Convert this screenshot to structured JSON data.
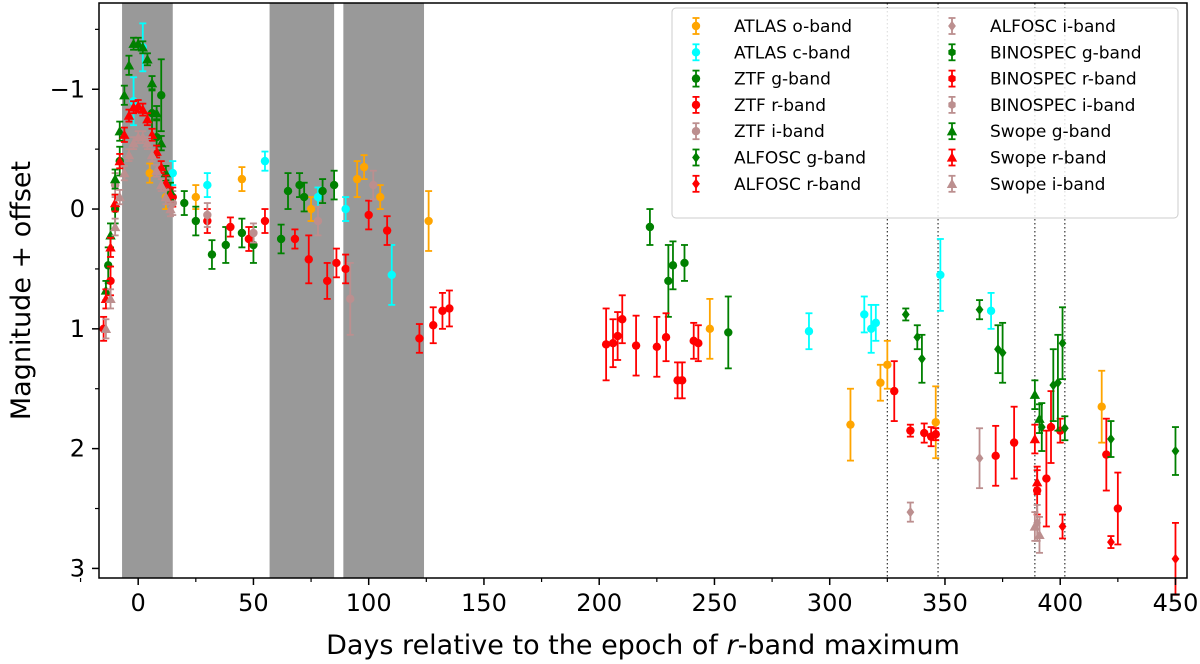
{
  "chart_data": {
    "type": "scatter",
    "xlabel_prefix": "Days relative to the epoch of ",
    "xlabel_italic": "r",
    "xlabel_suffix": "-band maximum",
    "ylabel": "Magnitude + offset",
    "xlim": [
      -17,
      455
    ],
    "ylim": [
      3.08,
      -1.72
    ],
    "y_inverted": true,
    "xticks": [
      0,
      50,
      100,
      150,
      200,
      250,
      300,
      350,
      400,
      450
    ],
    "xtick_labels": [
      "0",
      "50",
      "100",
      "150",
      "200",
      "250",
      "300",
      "350",
      "400",
      "450"
    ],
    "yticks": [
      -1,
      0,
      1,
      2,
      3
    ],
    "ytick_labels": [
      "−1",
      "0",
      "1",
      "2",
      "3"
    ],
    "shaded_regions": [
      [
        -7,
        15
      ],
      [
        57,
        85
      ],
      [
        89,
        124
      ]
    ],
    "vlines": [
      325,
      347,
      389,
      402
    ],
    "legend_position": "top-right",
    "series": [
      {
        "name": "ATLAS o-band",
        "color": "#ffa500",
        "marker": "circle",
        "points": [
          [
            5,
            -0.3,
            0.08
          ],
          [
            12,
            -0.1,
            0.1
          ],
          [
            25,
            -0.1,
            0.1
          ],
          [
            45,
            -0.25,
            0.1
          ],
          [
            75,
            0,
            0.1
          ],
          [
            95,
            -0.25,
            0.15
          ],
          [
            98,
            -0.35,
            0.1
          ],
          [
            105,
            -0.1,
            0.1
          ],
          [
            126,
            0.1,
            0.25
          ],
          [
            248,
            1,
            0.25
          ],
          [
            309,
            1.8,
            0.3
          ],
          [
            322,
            1.45,
            0.15
          ],
          [
            325,
            1.3,
            0.2
          ],
          [
            346,
            1.78,
            0.3
          ],
          [
            418,
            1.65,
            0.3
          ]
        ]
      },
      {
        "name": "ATLAS c-band",
        "color": "#00ffff",
        "marker": "circle",
        "points": [
          [
            -2,
            -0.9,
            0.2
          ],
          [
            2,
            -1.35,
            0.2
          ],
          [
            15,
            -0.3,
            0.1
          ],
          [
            30,
            -0.2,
            0.1
          ],
          [
            55,
            -0.4,
            0.08
          ],
          [
            78,
            -0.1,
            0.08
          ],
          [
            90,
            0,
            0.1
          ],
          [
            110,
            0.55,
            0.25
          ],
          [
            291,
            1.02,
            0.15
          ],
          [
            315,
            0.88,
            0.15
          ],
          [
            318,
            1,
            0.2
          ],
          [
            320,
            0.95,
            0.15
          ],
          [
            348,
            0.55,
            0.3
          ],
          [
            370,
            0.85,
            0.15
          ]
        ]
      },
      {
        "name": "ZTF g-band",
        "color": "#008000",
        "marker": "circle",
        "points": [
          [
            -13,
            0.47,
            0.15
          ],
          [
            -10,
            0,
            0.12
          ],
          [
            -8,
            -0.4,
            0.12
          ],
          [
            6,
            -0.8,
            0.2
          ],
          [
            8,
            -0.6,
            0.15
          ],
          [
            10,
            -0.95,
            0.3
          ],
          [
            20,
            -0.05,
            0.1
          ],
          [
            25,
            0.1,
            0.12
          ],
          [
            32,
            0.38,
            0.12
          ],
          [
            38,
            0.3,
            0.15
          ],
          [
            45,
            0.2,
            0.12
          ],
          [
            50,
            0.3,
            0.15
          ],
          [
            62,
            0.25,
            0.12
          ],
          [
            65,
            -0.15,
            0.15
          ],
          [
            70,
            -0.2,
            0.1
          ],
          [
            72,
            -0.1,
            0.12
          ],
          [
            80,
            -0.15,
            0.1
          ],
          [
            85,
            -0.2,
            0.12
          ],
          [
            222,
            0.15,
            0.15
          ],
          [
            230,
            0.6,
            0.3
          ],
          [
            232,
            0.47,
            0.2
          ],
          [
            237,
            0.45,
            0.15
          ],
          [
            256,
            1.03,
            0.3
          ]
        ]
      },
      {
        "name": "ZTF r-band",
        "color": "#ff0000",
        "marker": "circle",
        "points": [
          [
            -15,
            1,
            0.1
          ],
          [
            -12,
            0.6,
            0.12
          ],
          [
            15,
            -0.1,
            0.08
          ],
          [
            30,
            0.1,
            0.1
          ],
          [
            40,
            0.15,
            0.08
          ],
          [
            48,
            0.25,
            0.1
          ],
          [
            55,
            0.1,
            0.1
          ],
          [
            68,
            0.25,
            0.08
          ],
          [
            74,
            0.42,
            0.2
          ],
          [
            82,
            0.6,
            0.15
          ],
          [
            86,
            0.45,
            0.12
          ],
          [
            90,
            0.5,
            0.12
          ],
          [
            100,
            0.05,
            0.12
          ],
          [
            108,
            0.18,
            0.12
          ],
          [
            122,
            1.08,
            0.12
          ],
          [
            128,
            0.97,
            0.15
          ],
          [
            132,
            0.85,
            0.15
          ],
          [
            135,
            0.83,
            0.15
          ],
          [
            203,
            1.13,
            0.3
          ],
          [
            206,
            1.12,
            0.2
          ],
          [
            208,
            1.06,
            0.2
          ],
          [
            210,
            0.92,
            0.2
          ],
          [
            216,
            1.14,
            0.25
          ],
          [
            225,
            1.15,
            0.25
          ],
          [
            229,
            1.07,
            0.2
          ],
          [
            234,
            1.43,
            0.15
          ],
          [
            236,
            1.43,
            0.15
          ],
          [
            241,
            1.1,
            0.15
          ],
          [
            243,
            1.12,
            0.15
          ],
          [
            328,
            1.52,
            0.25
          ],
          [
            335,
            1.85,
            0.05
          ],
          [
            341,
            1.87,
            0.08
          ],
          [
            344,
            1.9,
            0.08
          ],
          [
            346,
            1.88,
            0.05
          ],
          [
            372,
            2.06,
            0.25
          ],
          [
            380,
            1.95,
            0.3
          ],
          [
            390,
            2.35,
            0.2
          ],
          [
            394,
            2.25,
            0.4
          ],
          [
            396,
            1.82,
            0.3
          ],
          [
            400,
            1.85,
            0.1
          ],
          [
            420,
            2.05,
            0.3
          ],
          [
            425,
            2.5,
            0.3
          ]
        ]
      },
      {
        "name": "ZTF i-band",
        "color": "#bc8f8f",
        "marker": "circle",
        "points": [
          [
            -10,
            -0.2,
            0.1
          ],
          [
            15,
            -0.05,
            0.1
          ],
          [
            30,
            0.05,
            0.1
          ],
          [
            50,
            0.2,
            0.08
          ],
          [
            78,
            0.1,
            0.12
          ],
          [
            92,
            0.75,
            0.3
          ],
          [
            102,
            -0.2,
            0.12
          ]
        ]
      },
      {
        "name": "ALFOSC g-band",
        "color": "#008000",
        "marker": "diamond",
        "points": [
          [
            333,
            0.88,
            0.05
          ],
          [
            338,
            1.07,
            0.1
          ],
          [
            340,
            1.25,
            0.2
          ],
          [
            365,
            0.84,
            0.08
          ],
          [
            373,
            1.17,
            0.2
          ],
          [
            375,
            1.2,
            0.25
          ],
          [
            392,
            1.82,
            0.2
          ],
          [
            397,
            1.47,
            0.3
          ],
          [
            399,
            1.45,
            0.4
          ],
          [
            401,
            1.12,
            0.3
          ],
          [
            402,
            1.83,
            0.1
          ],
          [
            422,
            1.92,
            0.15
          ],
          [
            450,
            2.02,
            0.2
          ]
        ]
      },
      {
        "name": "ALFOSC r-band",
        "color": "#ff0000",
        "marker": "diamond",
        "points": [
          [
            401,
            2.65,
            0.1
          ],
          [
            422,
            2.78,
            0.05
          ],
          [
            450,
            2.92,
            0.3
          ]
        ]
      },
      {
        "name": "ALFOSC i-band",
        "color": "#bc8f8f",
        "marker": "diamond",
        "points": [
          [
            335,
            2.53,
            0.08
          ],
          [
            365,
            2.08,
            0.25
          ],
          [
            390,
            2.62,
            0.15
          ]
        ]
      },
      {
        "name": "BINOSPEC g-band",
        "color": "#008000",
        "marker": "hexagon",
        "points": []
      },
      {
        "name": "BINOSPEC r-band",
        "color": "#ff0000",
        "marker": "hexagon",
        "points": []
      },
      {
        "name": "BINOSPEC i-band",
        "color": "#bc8f8f",
        "marker": "hexagon",
        "points": []
      },
      {
        "name": "Swope g-band",
        "color": "#008000",
        "marker": "triangle",
        "points": [
          [
            -14,
            0.68,
            0.08
          ],
          [
            -12,
            0.22,
            0.1
          ],
          [
            -10,
            -0.25,
            0.08
          ],
          [
            -8,
            -0.65,
            0.08
          ],
          [
            -6,
            -0.95,
            0.08
          ],
          [
            -4,
            -1.2,
            0.08
          ],
          [
            -2,
            -1.38,
            0.05
          ],
          [
            0,
            -1.38,
            0.05
          ],
          [
            2,
            -1.35,
            0.05
          ],
          [
            4,
            -1.25,
            0.05
          ],
          [
            6,
            -1.05,
            0.06
          ],
          [
            8,
            -0.8,
            0.06
          ],
          [
            10,
            -0.55,
            0.06
          ],
          [
            12,
            -0.3,
            0.06
          ],
          [
            14,
            -0.15,
            0.07
          ],
          [
            389,
            1.55,
            0.12
          ],
          [
            391,
            1.75,
            0.12
          ]
        ]
      },
      {
        "name": "Swope r-band",
        "color": "#ff0000",
        "marker": "triangle",
        "points": [
          [
            -14,
            0.75,
            0.08
          ],
          [
            -12,
            0.32,
            0.08
          ],
          [
            -10,
            -0.05,
            0.07
          ],
          [
            -8,
            -0.4,
            0.06
          ],
          [
            -6,
            -0.62,
            0.06
          ],
          [
            -4,
            -0.78,
            0.05
          ],
          [
            -2,
            -0.85,
            0.05
          ],
          [
            0,
            -0.86,
            0.05
          ],
          [
            2,
            -0.83,
            0.05
          ],
          [
            4,
            -0.75,
            0.05
          ],
          [
            6,
            -0.62,
            0.05
          ],
          [
            8,
            -0.48,
            0.05
          ],
          [
            10,
            -0.35,
            0.05
          ],
          [
            12,
            -0.22,
            0.06
          ],
          [
            14,
            -0.12,
            0.06
          ],
          [
            389,
            1.92,
            0.12
          ],
          [
            390,
            2.28,
            0.1
          ]
        ]
      },
      {
        "name": "Swope i-band",
        "color": "#bc8f8f",
        "marker": "triangle",
        "points": [
          [
            -14,
            1,
            0.08
          ],
          [
            -12,
            0.75,
            0.08
          ],
          [
            -10,
            0.15,
            0.07
          ],
          [
            -8,
            -0.1,
            0.06
          ],
          [
            -6,
            -0.3,
            0.06
          ],
          [
            -4,
            -0.45,
            0.05
          ],
          [
            -2,
            -0.55,
            0.05
          ],
          [
            0,
            -0.6,
            0.05
          ],
          [
            2,
            -0.6,
            0.05
          ],
          [
            4,
            -0.55,
            0.05
          ],
          [
            6,
            -0.45,
            0.05
          ],
          [
            8,
            -0.32,
            0.05
          ],
          [
            10,
            -0.2,
            0.05
          ],
          [
            12,
            -0.1,
            0.06
          ],
          [
            14,
            0,
            0.06
          ],
          [
            389,
            2.65,
            0.12
          ],
          [
            391,
            2.72,
            0.15
          ]
        ]
      }
    ]
  }
}
